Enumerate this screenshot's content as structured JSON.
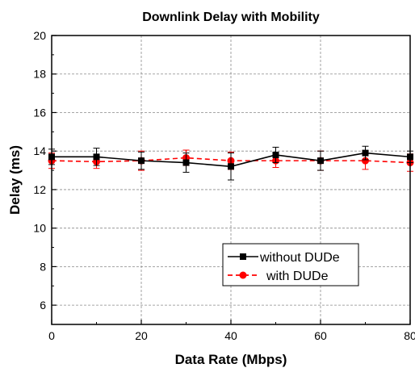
{
  "chart_data": {
    "type": "line",
    "title": "Downlink Delay with Mobility",
    "xlabel": "Data Rate (Mbps)",
    "ylabel": "Delay (ms)",
    "xlim": [
      0,
      80
    ],
    "ylim": [
      5,
      20
    ],
    "x_ticks": [
      "0",
      "20",
      "40",
      "60",
      "80"
    ],
    "y_ticks": [
      "6",
      "8",
      "10",
      "12",
      "14",
      "16",
      "18",
      "20"
    ],
    "grid": true,
    "legend_position": "lower-right",
    "x": [
      0,
      10,
      20,
      30,
      40,
      50,
      60,
      70,
      80
    ],
    "series": [
      {
        "name": "without DUDe",
        "color": "#000000",
        "line_style": "solid",
        "marker": "square",
        "values": [
          13.7,
          13.7,
          13.5,
          13.4,
          13.2,
          13.8,
          13.5,
          13.9,
          13.7
        ],
        "error": [
          0.4,
          0.45,
          0.45,
          0.5,
          0.7,
          0.4,
          0.5,
          0.35,
          0.3
        ]
      },
      {
        "name": "with DUDe",
        "color": "#ff0000",
        "line_style": "dashed",
        "marker": "circle",
        "values": [
          13.5,
          13.45,
          13.5,
          13.65,
          13.5,
          13.5,
          13.5,
          13.5,
          13.4
        ],
        "error": [
          0.4,
          0.35,
          0.5,
          0.4,
          0.45,
          0.35,
          0.5,
          0.45,
          0.45
        ]
      }
    ]
  }
}
